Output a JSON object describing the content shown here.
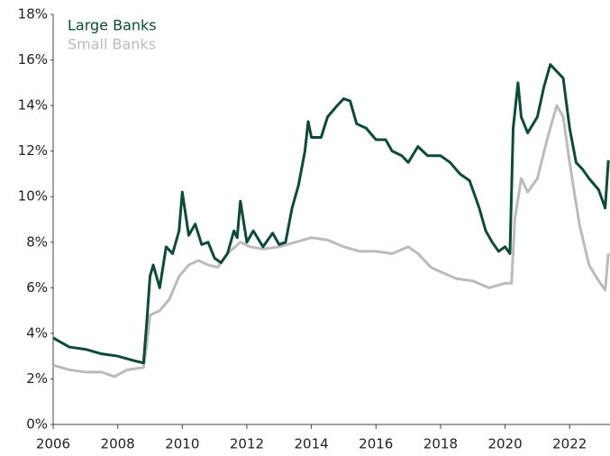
{
  "chart_data": {
    "type": "line",
    "legend": "upper left",
    "xlim": [
      2006,
      2023.25
    ],
    "xticks": [
      2006,
      2008,
      2010,
      2012,
      2014,
      2016,
      2018,
      2020,
      2022
    ],
    "ylim": [
      0,
      18
    ],
    "yticks": [
      {
        "value": 0,
        "label": "0%"
      },
      {
        "value": 2,
        "label": "2%"
      },
      {
        "value": 4,
        "label": "4%"
      },
      {
        "value": 6,
        "label": "6%"
      },
      {
        "value": 8,
        "label": "8%"
      },
      {
        "value": 10,
        "label": "10%"
      },
      {
        "value": 12,
        "label": "12%"
      },
      {
        "value": 14,
        "label": "14%"
      },
      {
        "value": 16,
        "label": "16%"
      },
      {
        "value": 18,
        "label": "18%"
      }
    ],
    "series": [
      {
        "name": "Large Banks",
        "color": "#0e4a3a",
        "x": [
          2006.0,
          2006.5,
          2007.0,
          2007.5,
          2008.0,
          2008.5,
          2008.8,
          2008.9,
          2009.0,
          2009.1,
          2009.3,
          2009.5,
          2009.7,
          2009.9,
          2010.0,
          2010.2,
          2010.4,
          2010.6,
          2010.8,
          2011.0,
          2011.2,
          2011.4,
          2011.6,
          2011.7,
          2011.8,
          2012.0,
          2012.2,
          2012.5,
          2012.8,
          2013.0,
          2013.2,
          2013.4,
          2013.6,
          2013.8,
          2013.9,
          2014.0,
          2014.3,
          2014.5,
          2014.8,
          2015.0,
          2015.2,
          2015.4,
          2015.7,
          2016.0,
          2016.3,
          2016.5,
          2016.8,
          2017.0,
          2017.3,
          2017.6,
          2018.0,
          2018.3,
          2018.6,
          2018.9,
          2019.0,
          2019.2,
          2019.4,
          2019.6,
          2019.8,
          2020.0,
          2020.15,
          2020.25,
          2020.4,
          2020.5,
          2020.7,
          2021.0,
          2021.2,
          2021.4,
          2021.6,
          2021.8,
          2022.0,
          2022.2,
          2022.4,
          2022.6,
          2022.9,
          2023.1,
          2023.2
        ],
        "values": [
          3.8,
          3.4,
          3.3,
          3.1,
          3.0,
          2.8,
          2.7,
          4.5,
          6.5,
          7.0,
          6.0,
          7.8,
          7.5,
          8.5,
          10.2,
          8.3,
          8.8,
          7.9,
          8.0,
          7.3,
          7.1,
          7.5,
          8.5,
          8.2,
          9.8,
          8.0,
          8.5,
          7.8,
          8.4,
          7.9,
          8.0,
          9.5,
          10.5,
          12.0,
          13.3,
          12.6,
          12.6,
          13.5,
          14.0,
          14.3,
          14.2,
          13.2,
          13.0,
          12.5,
          12.5,
          12.0,
          11.8,
          11.5,
          12.2,
          11.8,
          11.8,
          11.5,
          11.0,
          10.7,
          10.3,
          9.5,
          8.5,
          8.0,
          7.6,
          7.8,
          7.5,
          13.0,
          15.0,
          13.5,
          12.8,
          13.5,
          14.8,
          15.8,
          15.5,
          15.2,
          13.0,
          11.5,
          11.2,
          10.8,
          10.3,
          9.5,
          11.6
        ]
      },
      {
        "name": "Small Banks",
        "color": "#bbbbbb",
        "x": [
          2006.0,
          2006.5,
          2007.0,
          2007.5,
          2007.9,
          2008.3,
          2008.8,
          2008.9,
          2009.0,
          2009.3,
          2009.6,
          2009.9,
          2010.2,
          2010.5,
          2010.8,
          2011.1,
          2011.4,
          2011.8,
          2012.1,
          2012.5,
          2013.0,
          2013.5,
          2014.0,
          2014.5,
          2015.0,
          2015.5,
          2016.0,
          2016.5,
          2017.0,
          2017.3,
          2017.7,
          2018.0,
          2018.5,
          2019.0,
          2019.5,
          2020.0,
          2020.2,
          2020.3,
          2020.5,
          2020.7,
          2021.0,
          2021.3,
          2021.6,
          2021.8,
          2022.0,
          2022.3,
          2022.6,
          2022.9,
          2023.1,
          2023.2
        ],
        "values": [
          2.6,
          2.4,
          2.3,
          2.3,
          2.1,
          2.4,
          2.5,
          3.5,
          4.8,
          5.0,
          5.5,
          6.5,
          7.0,
          7.2,
          7.0,
          6.9,
          7.5,
          8.0,
          7.8,
          7.7,
          7.8,
          8.0,
          8.2,
          8.1,
          7.8,
          7.6,
          7.6,
          7.5,
          7.8,
          7.5,
          6.9,
          6.7,
          6.4,
          6.3,
          6.0,
          6.2,
          6.2,
          9.0,
          10.8,
          10.2,
          10.8,
          12.5,
          14.0,
          13.5,
          11.5,
          8.8,
          7.0,
          6.3,
          5.9,
          7.5
        ]
      }
    ]
  }
}
